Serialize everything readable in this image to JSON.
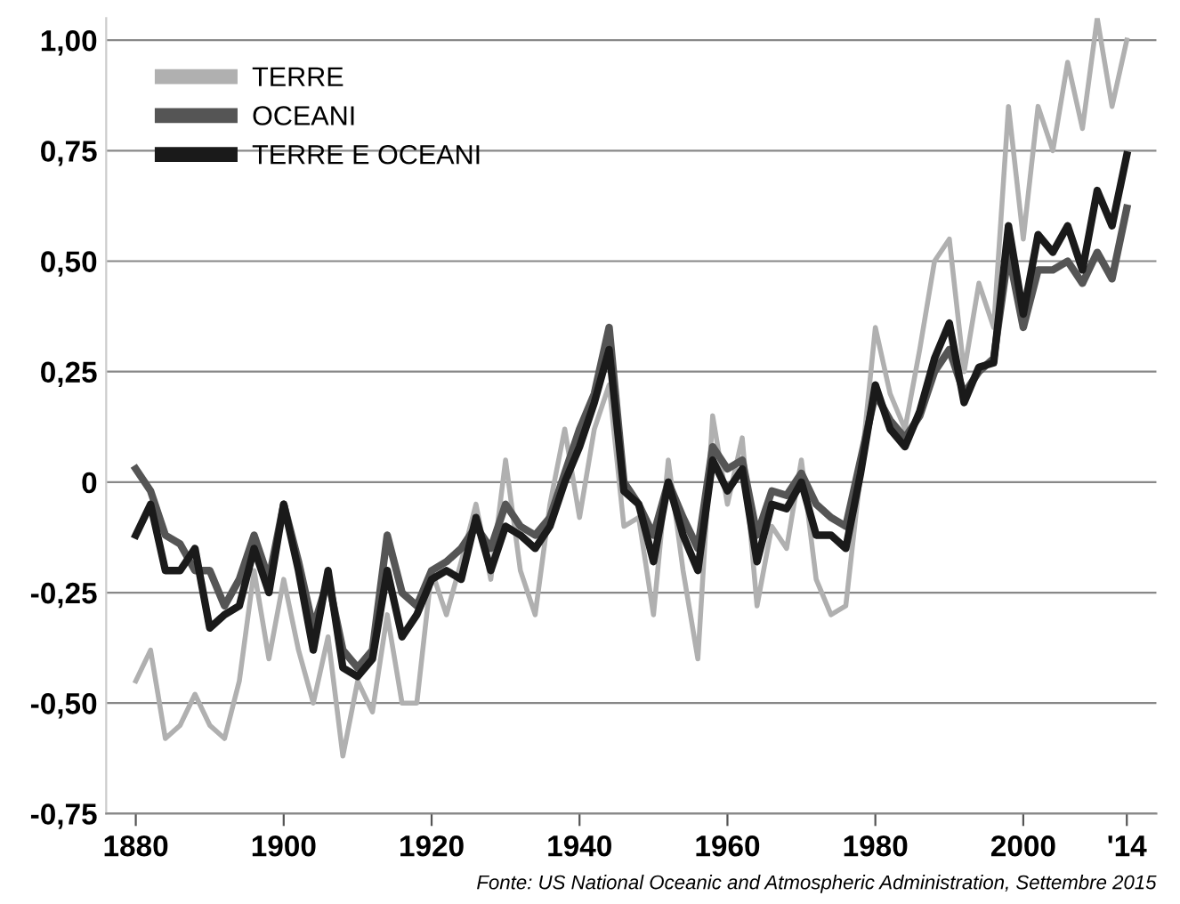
{
  "chart_data": {
    "type": "line",
    "x": [
      1880,
      1882,
      1884,
      1886,
      1888,
      1890,
      1892,
      1894,
      1896,
      1898,
      1900,
      1902,
      1904,
      1906,
      1908,
      1910,
      1912,
      1914,
      1916,
      1918,
      1920,
      1922,
      1924,
      1926,
      1928,
      1930,
      1932,
      1934,
      1936,
      1938,
      1940,
      1942,
      1944,
      1946,
      1948,
      1950,
      1952,
      1954,
      1956,
      1958,
      1960,
      1962,
      1964,
      1966,
      1968,
      1970,
      1972,
      1974,
      1976,
      1978,
      1980,
      1982,
      1984,
      1986,
      1988,
      1990,
      1992,
      1994,
      1996,
      1998,
      2000,
      2002,
      2004,
      2006,
      2008,
      2010,
      2012,
      2014
    ],
    "series": [
      {
        "name": "TERRE",
        "color": "#b0b0b0",
        "values": [
          -0.45,
          -0.38,
          -0.58,
          -0.55,
          -0.48,
          -0.55,
          -0.58,
          -0.45,
          -0.2,
          -0.4,
          -0.22,
          -0.38,
          -0.5,
          -0.35,
          -0.62,
          -0.45,
          -0.52,
          -0.3,
          -0.5,
          -0.5,
          -0.2,
          -0.3,
          -0.18,
          -0.05,
          -0.22,
          0.05,
          -0.2,
          -0.3,
          -0.05,
          0.12,
          -0.08,
          0.12,
          0.22,
          -0.1,
          -0.08,
          -0.3,
          0.05,
          -0.2,
          -0.4,
          0.15,
          -0.05,
          0.1,
          -0.28,
          -0.1,
          -0.15,
          0.05,
          -0.22,
          -0.3,
          -0.28,
          0.02,
          0.35,
          0.2,
          0.12,
          0.3,
          0.5,
          0.55,
          0.25,
          0.45,
          0.35,
          0.85,
          0.55,
          0.85,
          0.75,
          0.95,
          0.8,
          1.05,
          0.85,
          1.0
        ]
      },
      {
        "name": "OCEANI",
        "color": "#555555",
        "values": [
          0.03,
          -0.02,
          -0.12,
          -0.14,
          -0.2,
          -0.2,
          -0.28,
          -0.22,
          -0.12,
          -0.22,
          -0.05,
          -0.18,
          -0.33,
          -0.22,
          -0.38,
          -0.42,
          -0.38,
          -0.12,
          -0.25,
          -0.28,
          -0.2,
          -0.18,
          -0.15,
          -0.1,
          -0.15,
          -0.05,
          -0.1,
          -0.12,
          -0.08,
          0.02,
          0.12,
          0.2,
          0.35,
          0.0,
          -0.05,
          -0.12,
          0.0,
          -0.08,
          -0.15,
          0.08,
          0.03,
          0.05,
          -0.12,
          -0.02,
          -0.03,
          0.02,
          -0.05,
          -0.08,
          -0.1,
          0.05,
          0.2,
          0.14,
          0.1,
          0.15,
          0.25,
          0.3,
          0.2,
          0.25,
          0.28,
          0.52,
          0.35,
          0.48,
          0.48,
          0.5,
          0.45,
          0.52,
          0.46,
          0.62
        ]
      },
      {
        "name": "TERRE E OCEANI",
        "color": "#1a1a1a",
        "values": [
          -0.12,
          -0.05,
          -0.2,
          -0.2,
          -0.15,
          -0.33,
          -0.3,
          -0.28,
          -0.15,
          -0.25,
          -0.05,
          -0.2,
          -0.38,
          -0.2,
          -0.42,
          -0.44,
          -0.4,
          -0.2,
          -0.35,
          -0.3,
          -0.22,
          -0.2,
          -0.22,
          -0.08,
          -0.2,
          -0.1,
          -0.12,
          -0.15,
          -0.1,
          0.0,
          0.08,
          0.18,
          0.3,
          -0.02,
          -0.05,
          -0.18,
          0.0,
          -0.12,
          -0.2,
          0.05,
          -0.02,
          0.03,
          -0.18,
          -0.05,
          -0.06,
          0.0,
          -0.12,
          -0.12,
          -0.15,
          0.02,
          0.22,
          0.12,
          0.08,
          0.16,
          0.28,
          0.36,
          0.18,
          0.26,
          0.27,
          0.58,
          0.38,
          0.56,
          0.52,
          0.58,
          0.48,
          0.66,
          0.58,
          0.74
        ]
      }
    ],
    "xlim": [
      1876,
      2018
    ],
    "xticks": [
      1880,
      1900,
      1920,
      1940,
      1960,
      1980,
      2000,
      {
        "value": 2014,
        "label": "'14"
      }
    ],
    "ylim": [
      -0.75,
      1.05
    ],
    "yticks": [
      {
        "value": -0.75,
        "label": "-0,75"
      },
      {
        "value": -0.5,
        "label": "-0,50"
      },
      {
        "value": -0.25,
        "label": "-0,25"
      },
      0,
      {
        "value": 0.25,
        "label": "0,25"
      },
      {
        "value": 0.5,
        "label": "0,50"
      },
      {
        "value": 0.75,
        "label": "0,75"
      },
      {
        "value": 1.0,
        "label": "1,00"
      }
    ],
    "grid": "y",
    "legend": "top left",
    "marker": "none",
    "line_style": "solid",
    "annotations": [
      "Fonte: US National Oceanic and Atmospheric Administration, Settembre 2015"
    ]
  }
}
